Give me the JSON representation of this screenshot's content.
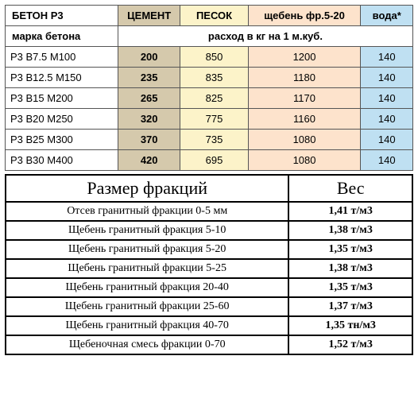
{
  "top": {
    "colors": {
      "cement_bg": "#d5c9ac",
      "sand_bg": "#fcf3c9",
      "gravel_bg": "#fde3cc",
      "water_bg": "#bfe0f2",
      "border": "#555555"
    },
    "header": {
      "grade": "БЕТОН Р3",
      "cement": "ЦЕМЕНТ",
      "sand": "ПЕСОК",
      "gravel": "щебень фр.5-20",
      "water": "вода*"
    },
    "subheader": {
      "grade": "марка бетона",
      "rashod": "расход в кг на 1 м.куб."
    },
    "rows": [
      {
        "grade": "Р3   B7.5  M100",
        "cement": "200",
        "sand": "850",
        "gravel": "1200",
        "water": "140"
      },
      {
        "grade": "Р3   B12.5  M150",
        "cement": "235",
        "sand": "835",
        "gravel": "1180",
        "water": "140"
      },
      {
        "grade": "Р3   B15  M200",
        "cement": "265",
        "sand": "825",
        "gravel": "1170",
        "water": "140"
      },
      {
        "grade": "Р3   B20  M250",
        "cement": "320",
        "sand": "775",
        "gravel": "1160",
        "water": "140"
      },
      {
        "grade": "Р3   B25  M300",
        "cement": "370",
        "sand": "735",
        "gravel": "1080",
        "water": "140"
      },
      {
        "grade": "Р3   B30  M400",
        "cement": "420",
        "sand": "695",
        "gravel": "1080",
        "water": "140"
      }
    ]
  },
  "bottom": {
    "header": {
      "size": "Размер фракций",
      "weight": "Вес"
    },
    "rows": [
      {
        "desc": "Отсев гранитный фракции 0-5 мм",
        "weight": "1,41 т/м3"
      },
      {
        "desc": "Щебень гранитный  фракция 5-10",
        "weight": "1,38 т/м3"
      },
      {
        "desc": "Щебень гранитный  фракция 5-20",
        "weight": "1,35 т/м3"
      },
      {
        "desc": "Щебень гранитный фракции 5-25",
        "weight": "1,38 т/м3"
      },
      {
        "desc": "Щебень гранитный фракция 20-40",
        "weight": "1,35 т/м3"
      },
      {
        "desc": "Щебень гранитный фракции 25-60",
        "weight": "1,37 т/м3"
      },
      {
        "desc": "Щебень гранитный фракция 40-70",
        "weight": "1,35 тн/м3"
      },
      {
        "desc": "Щебеночная смесь фракции 0-70",
        "weight": "1,52 т/м3"
      }
    ]
  }
}
